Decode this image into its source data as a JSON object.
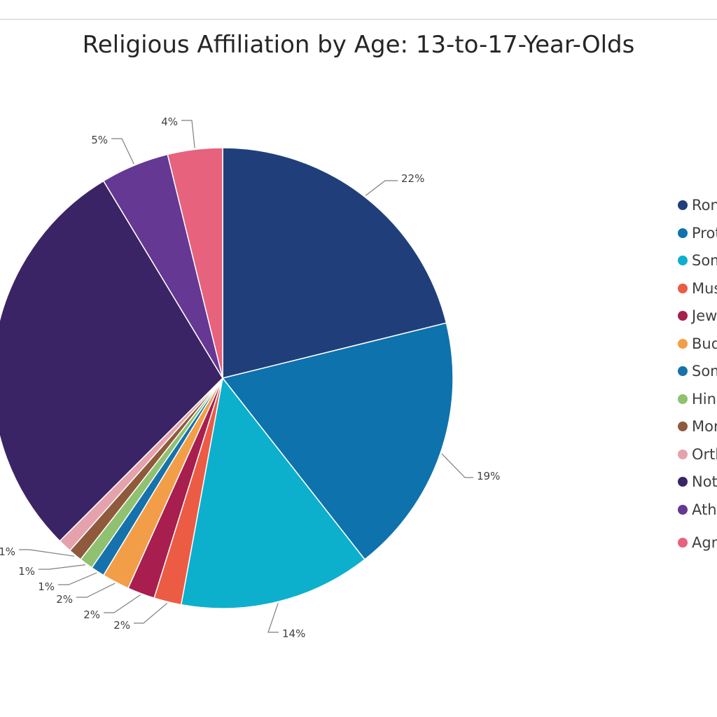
{
  "chart_data": {
    "type": "pie",
    "title": "Religious Affiliation by Age: 13-to-17-Year-Olds",
    "label_format": "percent",
    "slices": [
      {
        "label": "Ron",
        "value": 22,
        "color": "#203f7a"
      },
      {
        "label": "Prot",
        "value": 19,
        "color": "#0e72ad"
      },
      {
        "label": "Som",
        "value": 14,
        "color": "#0cb0cc"
      },
      {
        "label": "Mus",
        "value": 2,
        "color": "#ec5b44"
      },
      {
        "label": "Jew",
        "value": 2,
        "color": "#a81e4e"
      },
      {
        "label": "Bud",
        "value": 2,
        "color": "#f29e48"
      },
      {
        "label": "Som",
        "value": 1,
        "color": "#1672ad"
      },
      {
        "label": "Hin",
        "value": 1,
        "color": "#8fc170"
      },
      {
        "label": "Mor",
        "value": 1,
        "color": "#8f5a3c"
      },
      {
        "label": "Orth",
        "value": 1,
        "color": "#e5a2ad"
      },
      {
        "label": "Not",
        "value": 30,
        "color": "#3b2465"
      },
      {
        "label": "Ath",
        "value": 5,
        "color": "#643893"
      },
      {
        "label": "Agn",
        "value": 4,
        "color": "#e7627c"
      }
    ],
    "legend_position": "right"
  }
}
